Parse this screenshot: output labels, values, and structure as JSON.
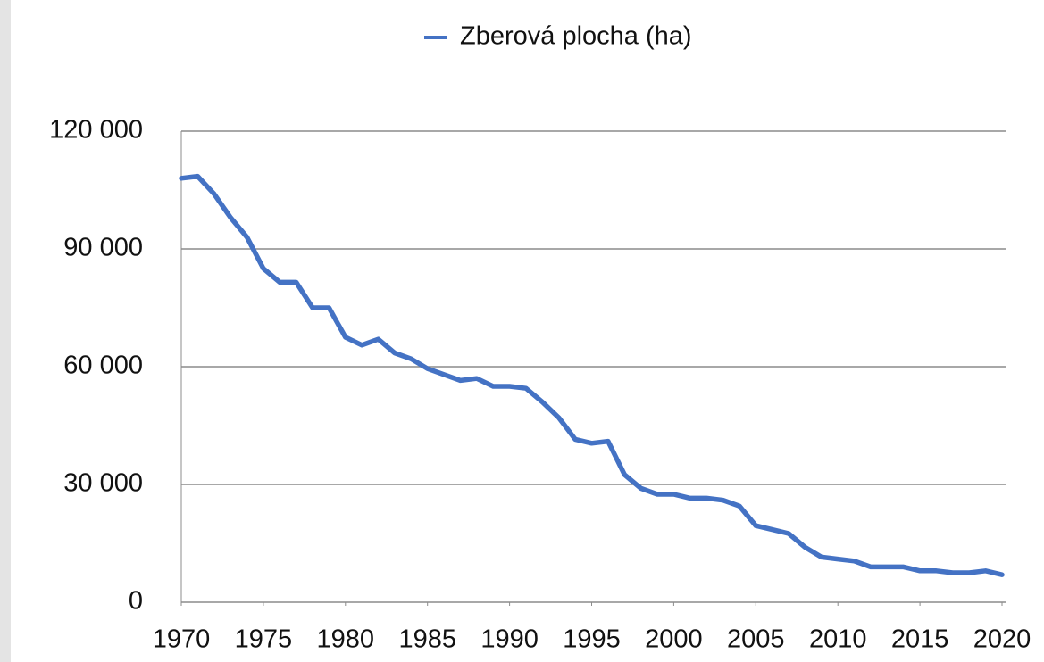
{
  "chart_data": {
    "type": "line",
    "x": [
      1970,
      1971,
      1972,
      1973,
      1974,
      1975,
      1976,
      1977,
      1978,
      1979,
      1980,
      1981,
      1982,
      1983,
      1984,
      1985,
      1986,
      1987,
      1988,
      1989,
      1990,
      1991,
      1992,
      1993,
      1994,
      1995,
      1996,
      1997,
      1998,
      1999,
      2000,
      2001,
      2002,
      2003,
      2004,
      2005,
      2006,
      2007,
      2008,
      2009,
      2010,
      2011,
      2012,
      2013,
      2014,
      2015,
      2016,
      2017,
      2018,
      2019,
      2020
    ],
    "series": [
      {
        "name": "Zberová plocha (ha)",
        "color": "#4472c4",
        "values": [
          108000,
          108500,
          104000,
          98000,
          93000,
          85000,
          81500,
          81500,
          75000,
          75000,
          67500,
          65500,
          67000,
          63500,
          62000,
          59500,
          58000,
          56500,
          57000,
          55000,
          55000,
          54500,
          51000,
          47000,
          41500,
          40500,
          41000,
          32500,
          29000,
          27500,
          27500,
          26500,
          26500,
          26000,
          24500,
          19500,
          18500,
          17500,
          14000,
          11500,
          11000,
          10500,
          9000,
          9000,
          9000,
          8000,
          8000,
          7500,
          7500,
          8000,
          7000
        ]
      }
    ],
    "xlim": [
      1970,
      2020
    ],
    "xticks": [
      1970,
      1975,
      1980,
      1985,
      1990,
      1995,
      2000,
      2005,
      2010,
      2015,
      2020
    ],
    "ylim": [
      0,
      120000
    ],
    "yticks": [
      0,
      {
        "value": 30000,
        "label": "30 000"
      },
      {
        "value": 60000,
        "label": "60 000"
      },
      {
        "value": 90000,
        "label": "90 000"
      },
      {
        "value": 120000,
        "label": "120 000"
      }
    ],
    "grid": true,
    "legend": "top"
  }
}
